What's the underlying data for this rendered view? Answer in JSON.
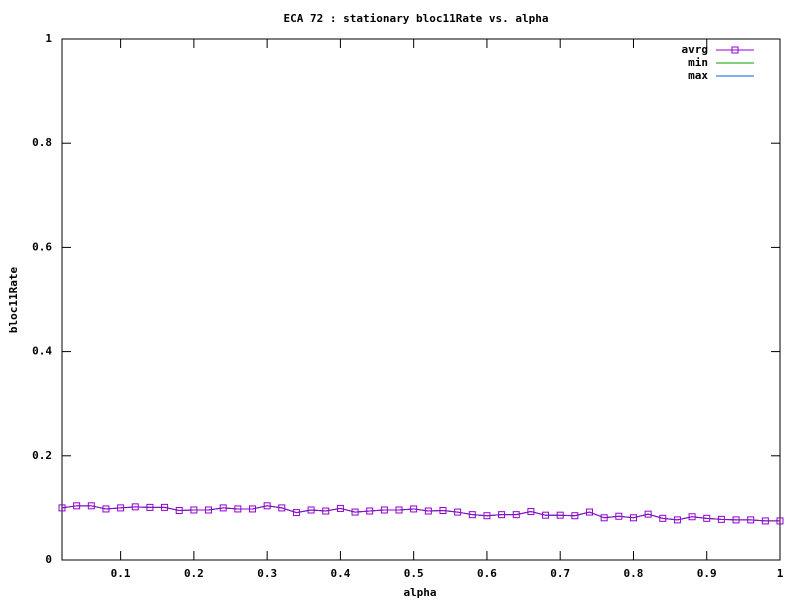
{
  "chart_data": {
    "type": "line",
    "title": "ECA 72 : stationary bloc11Rate vs. alpha",
    "xlabel": "alpha",
    "ylabel": "bloc11Rate",
    "x": [
      0.02,
      0.04,
      0.06,
      0.08,
      0.1,
      0.12,
      0.14,
      0.16,
      0.18,
      0.2,
      0.22,
      0.24,
      0.26,
      0.28,
      0.3,
      0.32,
      0.34,
      0.36,
      0.38,
      0.4,
      0.42,
      0.44,
      0.46,
      0.48,
      0.5,
      0.52,
      0.54,
      0.56,
      0.58,
      0.6,
      0.62,
      0.64,
      0.66,
      0.68,
      0.7,
      0.72,
      0.74,
      0.76,
      0.78,
      0.8,
      0.82,
      0.84,
      0.86,
      0.88,
      0.9,
      0.92,
      0.94,
      0.96,
      0.98,
      1
    ],
    "series": [
      {
        "name": "avrg",
        "color": "#9400d3",
        "marker": "square",
        "values": [
          0.1,
          0.104,
          0.104,
          0.098,
          0.1,
          0.102,
          0.101,
          0.101,
          0.095,
          0.096,
          0.096,
          0.1,
          0.098,
          0.098,
          0.104,
          0.1,
          0.091,
          0.096,
          0.094,
          0.099,
          0.092,
          0.094,
          0.096,
          0.096,
          0.098,
          0.094,
          0.095,
          0.092,
          0.087,
          0.085,
          0.087,
          0.087,
          0.093,
          0.086,
          0.086,
          0.085,
          0.092,
          0.081,
          0.084,
          0.081,
          0.088,
          0.08,
          0.077,
          0.083,
          0.08,
          0.078,
          0.077,
          0.077,
          0.075,
          0.075
        ]
      },
      {
        "name": "min",
        "color": "#00a000",
        "values": [
          0.1,
          0.104,
          0.104,
          0.098,
          0.1,
          0.102,
          0.101,
          0.101,
          0.095,
          0.096,
          0.096,
          0.1,
          0.098,
          0.098,
          0.104,
          0.1,
          0.091,
          0.096,
          0.094,
          0.099,
          0.092,
          0.094,
          0.096,
          0.096,
          0.098,
          0.094,
          0.095,
          0.092,
          0.087,
          0.085,
          0.087,
          0.087,
          0.093,
          0.086,
          0.086,
          0.085,
          0.092,
          0.081,
          0.084,
          0.081,
          0.088,
          0.08,
          0.077,
          0.083,
          0.08,
          0.078,
          0.077,
          0.077,
          0.075,
          0.075
        ]
      },
      {
        "name": "max",
        "color": "#0060e0",
        "values": [
          0.1,
          0.104,
          0.104,
          0.098,
          0.1,
          0.102,
          0.101,
          0.101,
          0.095,
          0.096,
          0.096,
          0.1,
          0.098,
          0.098,
          0.104,
          0.1,
          0.091,
          0.096,
          0.094,
          0.099,
          0.092,
          0.094,
          0.096,
          0.096,
          0.098,
          0.094,
          0.095,
          0.092,
          0.087,
          0.085,
          0.087,
          0.087,
          0.093,
          0.086,
          0.086,
          0.085,
          0.092,
          0.081,
          0.084,
          0.081,
          0.088,
          0.08,
          0.077,
          0.083,
          0.08,
          0.078,
          0.077,
          0.077,
          0.075,
          0.075
        ]
      }
    ],
    "xlim": [
      0.02,
      1
    ],
    "xticks": [
      0.1,
      0.2,
      0.3,
      0.4,
      0.5,
      0.6,
      0.7,
      0.8,
      0.9,
      1
    ],
    "ylim": [
      0,
      1
    ],
    "yticks": [
      0,
      0.2,
      0.4,
      0.6,
      0.8,
      1
    ],
    "grid": false,
    "legend": "top-right"
  }
}
